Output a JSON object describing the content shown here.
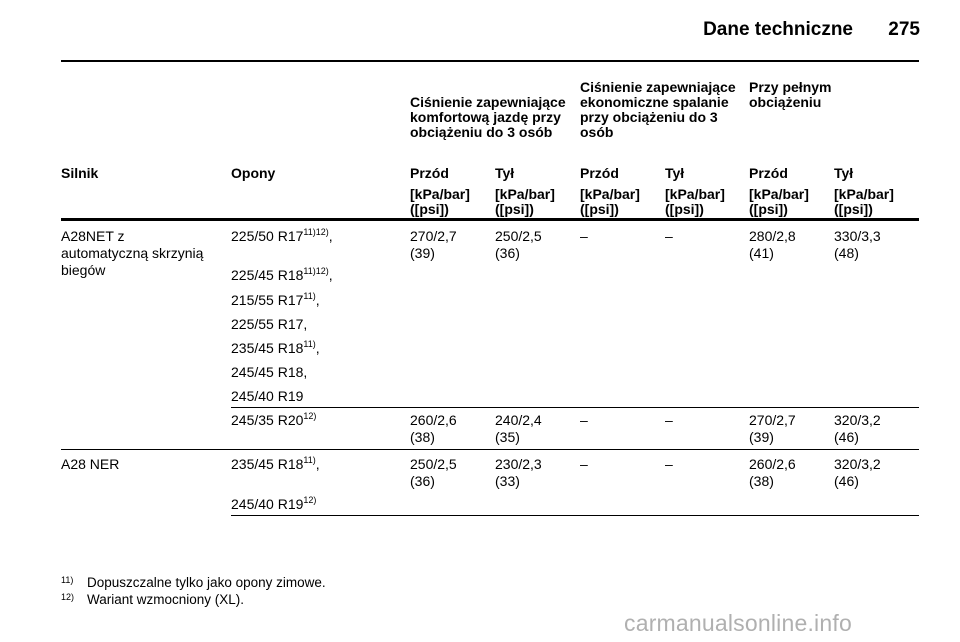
{
  "header": {
    "title": "Dane techniczne",
    "page_number": "275"
  },
  "table": {
    "group_headers": [
      "Ciśnienie zapewniające komfortową jazdę przy obciążeniu do 3 osób",
      "Ciśnienie zapewniające ekonomiczne spalanie przy obciążeniu do 3 osób",
      "Przy pełnym obciążeniu"
    ],
    "columns": [
      "Silnik",
      "Opony",
      "Przód",
      "Tył",
      "Przód",
      "Tył",
      "Przód",
      "Tył"
    ],
    "units": "[kPa/bar] ([psi])",
    "engines": [
      "A28NET z automatyczną skrzynią biegów",
      "A28 NER"
    ],
    "rows": [
      {
        "tires": [
          {
            "size": "225/50 R17",
            "note": "11)12)",
            "sep": ","
          },
          {
            "size": "225/45 R18",
            "note": "11)12)",
            "sep": ","
          },
          {
            "size": "215/55 R17",
            "note": "11)",
            "sep": ","
          },
          {
            "size": "225/55 R17",
            "note": "",
            "sep": ","
          },
          {
            "size": "235/45 R18",
            "note": "11)",
            "sep": ","
          },
          {
            "size": "245/45 R18",
            "note": "",
            "sep": ","
          },
          {
            "size": "245/40 R19",
            "note": "",
            "sep": ""
          }
        ],
        "values": [
          "270/2,7 (39)",
          "250/2,5 (36)",
          "–",
          "–",
          "280/2,8 (41)",
          "330/3,3 (48)"
        ]
      },
      {
        "tires": [
          {
            "size": "245/35 R20",
            "note": "12)",
            "sep": ""
          }
        ],
        "values": [
          "260/2,6 (38)",
          "240/2,4 (35)",
          "–",
          "–",
          "270/2,7 (39)",
          "320/3,2 (46)"
        ]
      },
      {
        "tires": [
          {
            "size": "235/45 R18",
            "note": "11)",
            "sep": ","
          },
          {
            "size": "245/40 R19",
            "note": "12)",
            "sep": ""
          }
        ],
        "values": [
          "250/2,5 (36)",
          "230/2,3 (33)",
          "–",
          "–",
          "260/2,6 (38)",
          "320/3,2 (46)"
        ]
      }
    ]
  },
  "footnotes": [
    {
      "mark": "11)",
      "text": "Dopuszczalne tylko jako opony zimowe."
    },
    {
      "mark": "12)",
      "text": "Wariant wzmocniony (XL)."
    }
  ],
  "watermark": "carmanualsonline.info"
}
